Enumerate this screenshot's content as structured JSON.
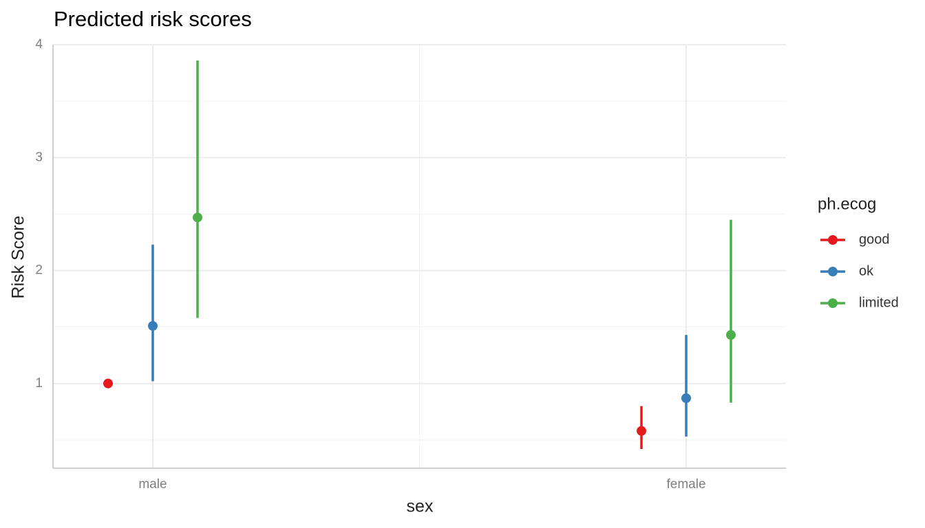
{
  "chart_data": {
    "type": "pointrange",
    "title": "Predicted risk scores",
    "x_label": "sex",
    "y_label": "Risk Score",
    "categories": [
      "male",
      "female"
    ],
    "legend_title": "ph.ecog",
    "series": [
      {
        "name": "good",
        "color": "#e41a1c",
        "values": [
          1.0,
          0.58
        ],
        "lower": [
          1.0,
          0.42
        ],
        "upper": [
          1.0,
          0.8
        ]
      },
      {
        "name": "ok",
        "color": "#377eb8",
        "values": [
          1.51,
          0.87
        ],
        "lower": [
          1.02,
          0.53
        ],
        "upper": [
          2.23,
          1.43
        ]
      },
      {
        "name": "limited",
        "color": "#4daf4a",
        "values": [
          2.47,
          1.43
        ],
        "lower": [
          1.58,
          0.83
        ],
        "upper": [
          3.86,
          2.45
        ]
      }
    ],
    "ylim": [
      0.25,
      4.0
    ],
    "yticks": [
      1,
      2,
      3,
      4
    ],
    "grid": true,
    "legend_position": "right"
  }
}
